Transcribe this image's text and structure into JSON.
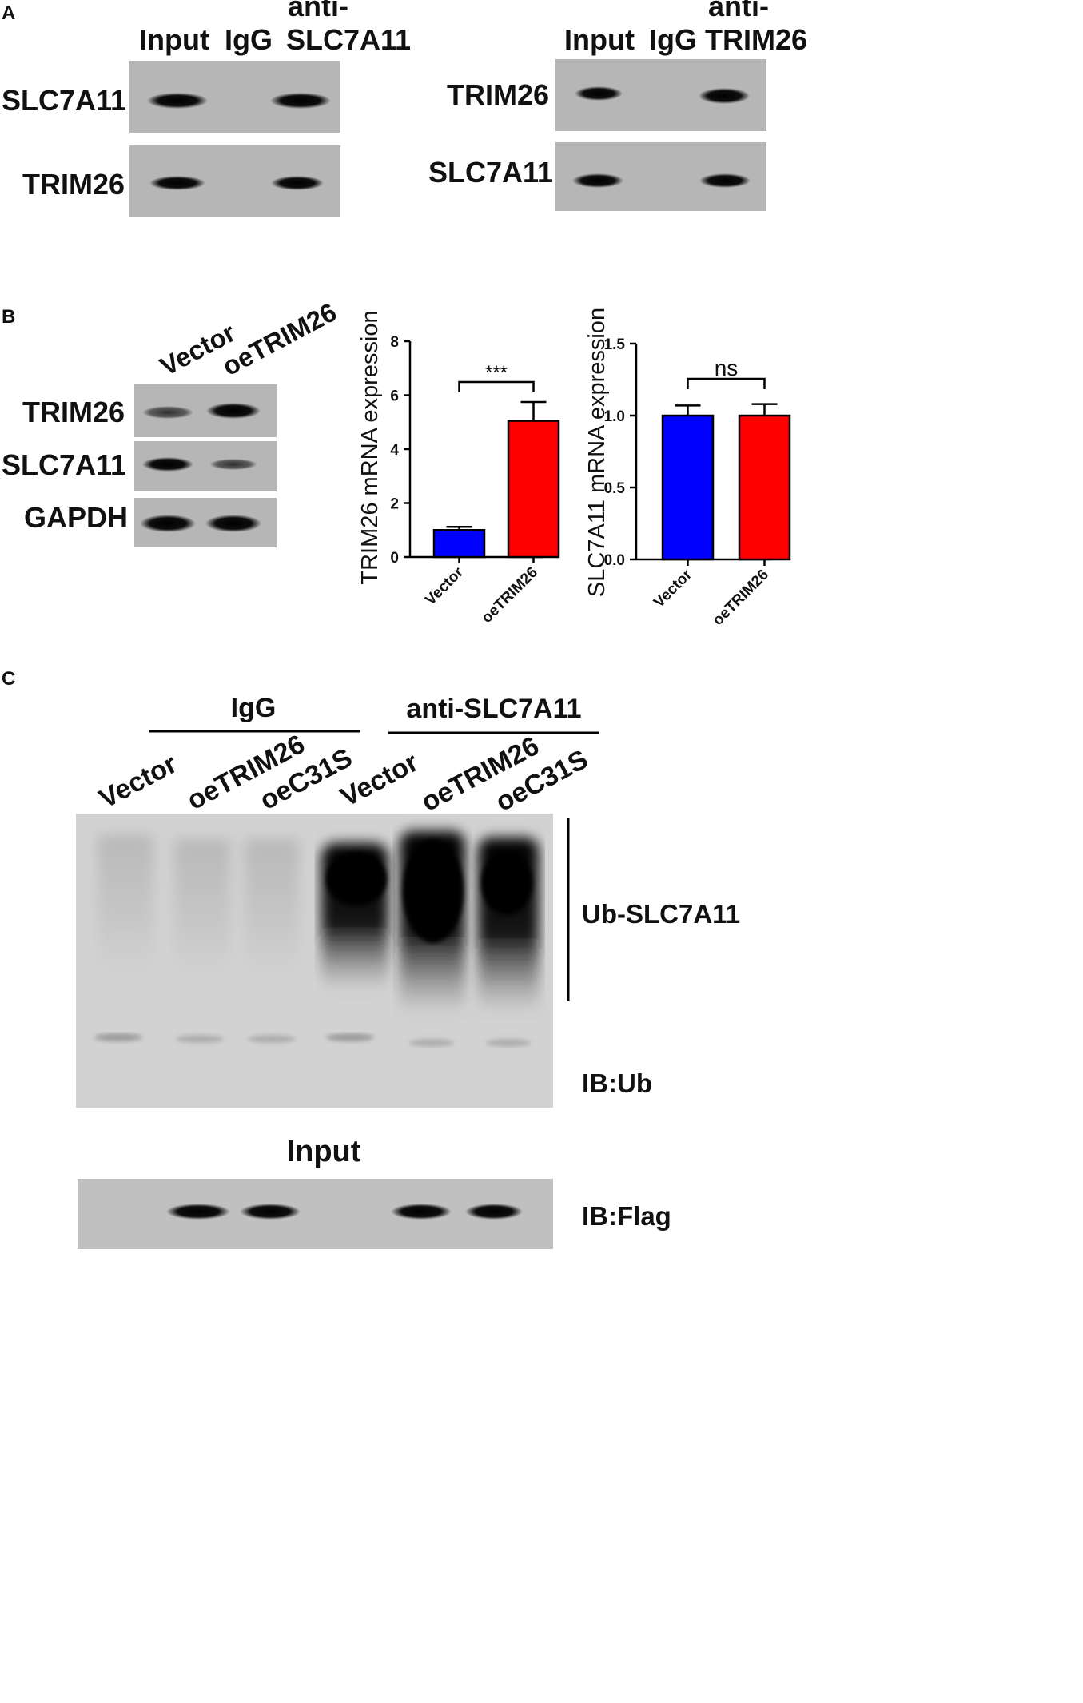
{
  "panel_a": {
    "letter": "A",
    "left": {
      "col_input": "Input",
      "col_igg": "IgG",
      "col_anti_1": "anti-",
      "col_anti_2": "SLC7A11",
      "row1": "SLC7A11",
      "row2": "TRIM26",
      "bands": [
        [
          1,
          0,
          1
        ],
        [
          1,
          0,
          1
        ]
      ]
    },
    "right": {
      "col_input": "Input",
      "col_igg": "IgG",
      "col_anti_1": "anti-",
      "col_anti_2": "TRIM26",
      "row1": "TRIM26",
      "row2": "SLC7A11",
      "bands": [
        [
          1,
          0,
          1
        ],
        [
          1,
          0,
          1
        ]
      ]
    }
  },
  "panel_b": {
    "letter": "B",
    "blot": {
      "col1": "Vector",
      "col2": "oeTRIM26",
      "row1": "TRIM26",
      "row2": "SLC7A11",
      "row3": "GAPDH"
    }
  },
  "chart_data": [
    {
      "type": "bar",
      "categories": [
        "Vector",
        "oeTRIM26"
      ],
      "values": [
        1.0,
        5.05
      ],
      "errors": [
        0.12,
        0.7
      ],
      "ylabel": "TRIM26 mRNA expression",
      "ylim": [
        0,
        8
      ],
      "yticks": [
        "0",
        "2",
        "4",
        "6",
        "8"
      ],
      "significance": "***",
      "colors": [
        "#0000ff",
        "#ff0000"
      ]
    },
    {
      "type": "bar",
      "categories": [
        "Vector",
        "oeTRIM26"
      ],
      "values": [
        1.0,
        1.0
      ],
      "errors": [
        0.07,
        0.08
      ],
      "ylabel": "SLC7A11 mRNA expression",
      "ylim": [
        0,
        1.5
      ],
      "yticks": [
        "0.0",
        "0.5",
        "1.0",
        "1.5"
      ],
      "significance": "ns",
      "colors": [
        "#0000ff",
        "#ff0000"
      ]
    }
  ],
  "panel_c": {
    "letter": "C",
    "group1": "IgG",
    "group2": "anti-SLC7A11",
    "lanes": [
      "Vector",
      "oeTRIM26",
      "oeC31S",
      "Vector",
      "oeTRIM26",
      "oeC31S"
    ],
    "ub_label": "Ub-SLC7A11",
    "ib_ub": "IB:Ub",
    "input_title": "Input",
    "ib_flag": "IB:Flag"
  }
}
